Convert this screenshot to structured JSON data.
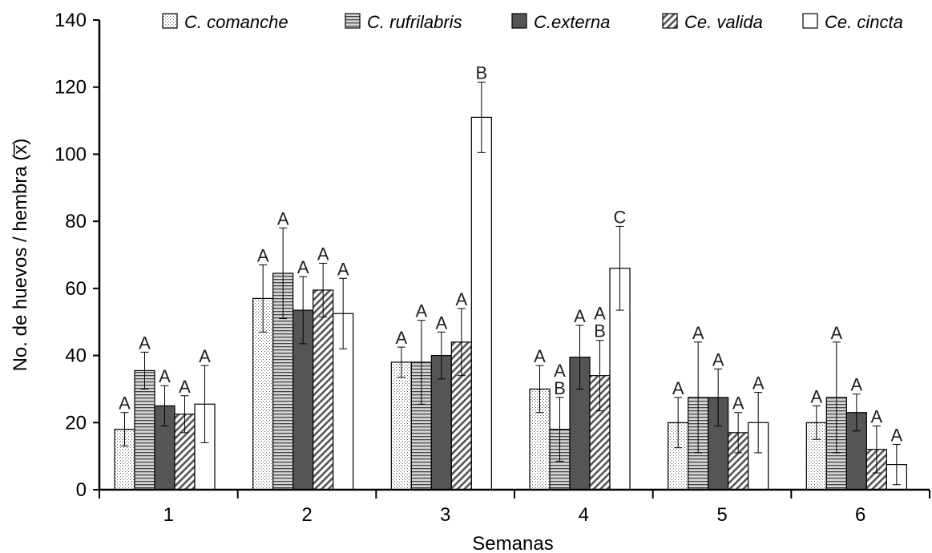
{
  "chart_data": {
    "type": "bar",
    "xlabel": "Semanas",
    "ylabel": "No. de huevos / hembra (x̅)",
    "ylim": [
      0,
      140
    ],
    "yticks": [
      0,
      20,
      40,
      60,
      80,
      100,
      120,
      140
    ],
    "categories": [
      "1",
      "2",
      "3",
      "4",
      "5",
      "6"
    ],
    "legend_position": "top",
    "grid": false,
    "series": [
      {
        "name": "C. comanche",
        "pattern": "dots",
        "values": [
          18,
          57,
          38,
          30,
          20,
          20
        ],
        "errors": [
          5,
          10,
          4.5,
          7,
          7.5,
          5
        ],
        "labels": [
          "A",
          "A",
          "A",
          "A",
          "A",
          "A"
        ]
      },
      {
        "name": "C. rufrilabris",
        "pattern": "horizontal-lines",
        "values": [
          35.5,
          64.5,
          38,
          18,
          27.5,
          27.5
        ],
        "errors": [
          5.5,
          13.5,
          12.5,
          9.5,
          16.5,
          16.5
        ],
        "labels": [
          "A",
          "A",
          "A",
          "A\nB",
          "A",
          "A"
        ]
      },
      {
        "name": "C.externa",
        "pattern": "dark",
        "values": [
          25,
          53.5,
          40,
          39.5,
          27.5,
          23
        ],
        "errors": [
          6,
          10,
          7,
          9.5,
          8.5,
          5.5
        ],
        "labels": [
          "A",
          "A",
          "A",
          "A",
          "A",
          "A"
        ]
      },
      {
        "name": "Ce. valida",
        "pattern": "diagonal-lines",
        "values": [
          22.5,
          59.5,
          44,
          34,
          17,
          12
        ],
        "errors": [
          5.5,
          8,
          10,
          10.5,
          6,
          7
        ],
        "labels": [
          "A",
          "A",
          "A",
          "A\nB",
          "A",
          "A"
        ]
      },
      {
        "name": "Ce. cincta",
        "pattern": "white",
        "values": [
          25.5,
          52.5,
          111,
          66,
          20,
          7.5
        ],
        "errors": [
          11.5,
          10.5,
          10.5,
          12.5,
          9,
          6
        ],
        "labels": [
          "A",
          "A",
          "B",
          "C",
          "A",
          "A"
        ]
      }
    ]
  }
}
